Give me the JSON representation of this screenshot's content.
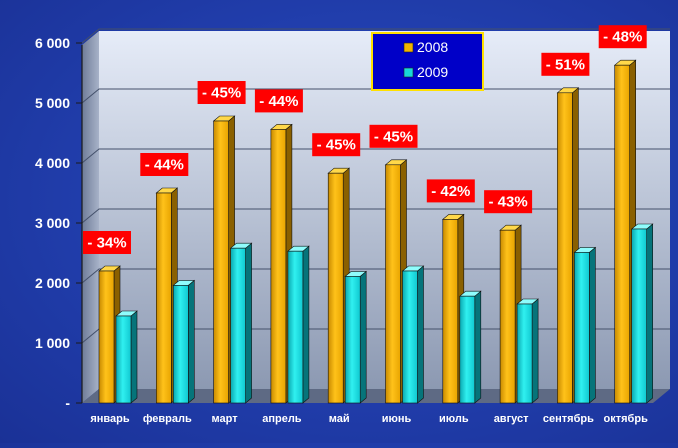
{
  "chart_data": {
    "type": "bar",
    "categories": [
      "январь",
      "февраль",
      "март",
      "апрель",
      "май",
      "июнь",
      "июль",
      "август",
      "сентябрь",
      "октябрь"
    ],
    "series": [
      {
        "name": "2008",
        "color": "#f0b400",
        "values": [
          2200,
          3500,
          4700,
          4560,
          3830,
          3970,
          3060,
          2880,
          5170,
          5630
        ]
      },
      {
        "name": "2009",
        "color": "#18d8d8",
        "values": [
          1450,
          1960,
          2580,
          2530,
          2110,
          2200,
          1780,
          1650,
          2510,
          2900
        ]
      }
    ],
    "annotations": [
      "- 34%",
      "- 44%",
      "- 45%",
      "- 44%",
      "- 45%",
      "- 45%",
      "- 42%",
      "- 43%",
      "- 51%",
      "- 48%"
    ],
    "annotation_color": "#ff0000",
    "yticks": [
      {
        "value": 0,
        "label": "-"
      },
      {
        "value": 1000,
        "label": "1 000"
      },
      {
        "value": 2000,
        "label": "2 000"
      },
      {
        "value": 3000,
        "label": "3 000"
      },
      {
        "value": 4000,
        "label": "4 000"
      },
      {
        "value": 5000,
        "label": "5 000"
      },
      {
        "value": 6000,
        "label": "6 000"
      }
    ],
    "ylim": [
      0,
      6000
    ],
    "grid": true,
    "legend_position": "top-right",
    "title": "",
    "xlabel": "",
    "ylabel": ""
  }
}
